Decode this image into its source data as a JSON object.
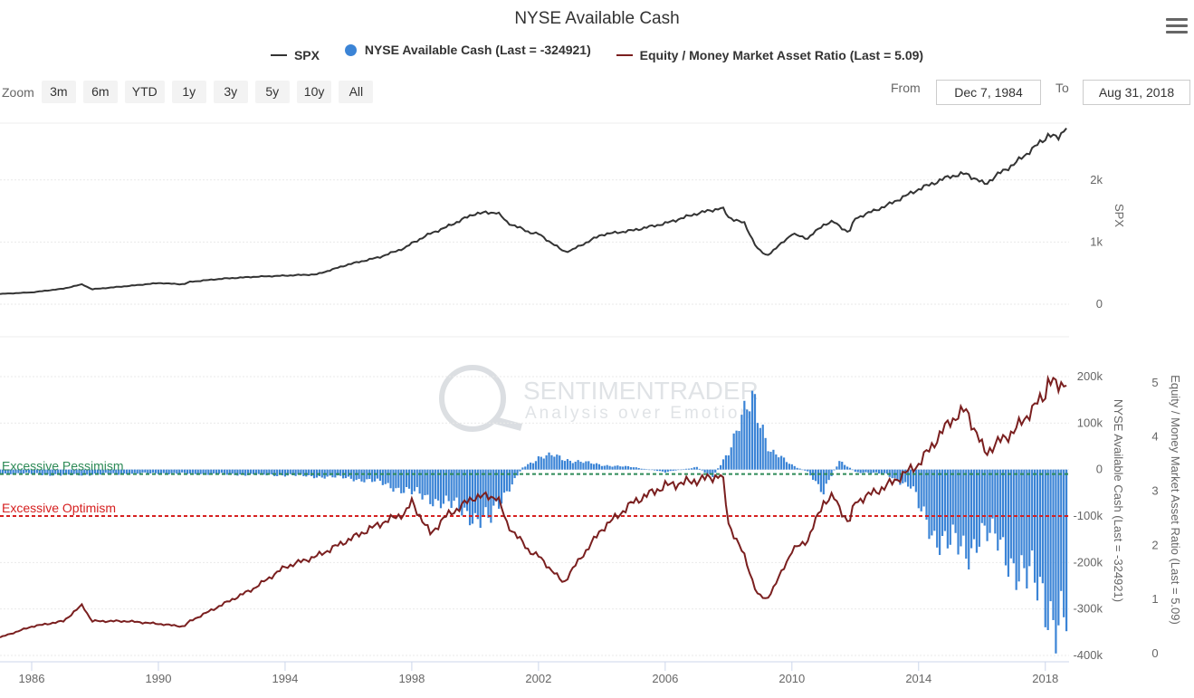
{
  "header": {
    "title": "NYSE Available Cash",
    "legend": [
      {
        "label": "SPX",
        "color": "#333333",
        "symbol": "line"
      },
      {
        "label": "NYSE Available Cash (Last = -324921)",
        "color": "#3b84d6",
        "symbol": "dot"
      },
      {
        "label": "Equity / Money Market Asset Ratio (Last = 5.09)",
        "color": "#7a1f1f",
        "symbol": "line"
      }
    ],
    "menu_icon": "hamburger-menu-icon"
  },
  "zoom": {
    "label": "Zoom",
    "buttons": [
      "3m",
      "6m",
      "YTD",
      "1y",
      "3y",
      "5y",
      "10y",
      "All"
    ]
  },
  "range": {
    "from_label": "From",
    "from_value": "Dec 7, 1984",
    "to_label": "To",
    "to_value": "Aug 31, 2018"
  },
  "watermark": {
    "line1": "SENTIMENTRADER",
    "line2": "Analysis over Emotion"
  },
  "chart_data": [
    {
      "type": "line",
      "name": "SPX",
      "ylabel": "SPX",
      "ylim": [
        0,
        2900
      ],
      "yticks": [
        {
          "v": 0,
          "label": "0"
        },
        {
          "v": 1000,
          "label": "1k"
        },
        {
          "v": 2000,
          "label": "2k"
        }
      ],
      "x": [
        1985,
        1986,
        1987,
        1987.6,
        1987.9,
        1989,
        1990,
        1990.8,
        1991,
        1992,
        1993,
        1994,
        1995,
        1996,
        1997,
        1997.8,
        1998,
        1998.6,
        1999,
        2000,
        2000.7,
        2001,
        2001.7,
        2002,
        2002.8,
        2003,
        2004,
        2005,
        2006,
        2007,
        2007.8,
        2008,
        2008.5,
        2008.9,
        2009.2,
        2009.5,
        2010,
        2010.5,
        2011,
        2011.3,
        2011.8,
        2012,
        2013,
        2014,
        2015,
        2015.5,
        2016.1,
        2016.5,
        2017,
        2018,
        2018.1,
        2018.4,
        2018.7
      ],
      "values": [
        165,
        190,
        250,
        320,
        240,
        290,
        340,
        320,
        360,
        410,
        440,
        460,
        480,
        640,
        760,
        910,
        980,
        1140,
        1220,
        1460,
        1480,
        1320,
        1160,
        1130,
        850,
        860,
        1120,
        1190,
        1300,
        1460,
        1550,
        1400,
        1300,
        900,
        780,
        900,
        1130,
        1060,
        1280,
        1330,
        1150,
        1380,
        1590,
        1850,
        2060,
        2100,
        1930,
        2090,
        2250,
        2670,
        2740,
        2660,
        2900
      ]
    },
    {
      "type": "bar",
      "name": "NYSE Available Cash (Last = -324921)",
      "ylabel": "NYSE Available Cash (Last = -324921)",
      "ylim": [
        -400000,
        200000
      ],
      "yticks": [
        {
          "v": 200000,
          "label": "200k"
        },
        {
          "v": 100000,
          "label": "100k"
        },
        {
          "v": 0,
          "label": "0"
        },
        {
          "v": -100000,
          "label": "-100k"
        },
        {
          "v": -200000,
          "label": "-200k"
        },
        {
          "v": -300000,
          "label": "-300k"
        },
        {
          "v": -400000,
          "label": "-400k"
        }
      ],
      "x": [
        1985,
        1986,
        1987,
        1988,
        1990,
        1992,
        1994,
        1996,
        1997,
        1998,
        1999,
        2000,
        2000.5,
        2001,
        2001.5,
        2002,
        2002.5,
        2003,
        2004,
        2005,
        2006,
        2007,
        2007.5,
        2008,
        2008.4,
        2008.8,
        2009.3,
        2010,
        2010.5,
        2011,
        2011.5,
        2012,
        2013,
        2013.8,
        2014,
        2014.5,
        2015,
        2015.5,
        2016,
        2016.5,
        2017,
        2017.5,
        2018,
        2018.4,
        2018.7
      ],
      "values": [
        -8000,
        -9000,
        -12000,
        -10000,
        -8000,
        -10000,
        -12000,
        -18000,
        -28000,
        -50000,
        -70000,
        -100000,
        -110000,
        -45000,
        5000,
        25000,
        30000,
        20000,
        10000,
        5000,
        -5000,
        5000,
        -15000,
        40000,
        100000,
        160000,
        40000,
        10000,
        -5000,
        -45000,
        20000,
        -5000,
        -10000,
        -40000,
        -80000,
        -140000,
        -160000,
        -180000,
        -130000,
        -160000,
        -200000,
        -240000,
        -280000,
        -320000,
        -325000
      ]
    },
    {
      "type": "line",
      "name": "Equity / Money Market Asset Ratio (Last = 5.09)",
      "ylabel": "Equity / Money Market Asset Ratio (Last = 5.09)",
      "ylim": [
        0,
        5.5
      ],
      "yticks": [
        {
          "v": 0,
          "label": "0"
        },
        {
          "v": 1,
          "label": "1"
        },
        {
          "v": 2,
          "label": "2"
        },
        {
          "v": 3,
          "label": "3"
        },
        {
          "v": 4,
          "label": "4"
        },
        {
          "v": 5,
          "label": "5"
        }
      ],
      "x": [
        1985,
        1986,
        1987,
        1987.6,
        1987.9,
        1989,
        1990,
        1990.8,
        1991,
        1992,
        1993,
        1994,
        1995,
        1996,
        1997,
        1997.8,
        1998,
        1998.6,
        1999,
        2000,
        2000.7,
        2001,
        2001.7,
        2002,
        2002.8,
        2003,
        2004,
        2005,
        2006,
        2007,
        2007.8,
        2008,
        2008.5,
        2008.9,
        2009.2,
        2009.5,
        2010,
        2010.5,
        2011,
        2011.3,
        2011.8,
        2012,
        2013,
        2014,
        2015,
        2015.5,
        2016.1,
        2016.5,
        2017,
        2018,
        2018.1,
        2018.4,
        2018.7
      ],
      "values": [
        0.3,
        0.5,
        0.6,
        0.9,
        0.6,
        0.6,
        0.55,
        0.5,
        0.6,
        0.9,
        1.2,
        1.6,
        1.8,
        2.1,
        2.4,
        2.6,
        2.8,
        2.2,
        2.5,
        2.9,
        2.9,
        2.4,
        1.9,
        1.8,
        1.3,
        1.5,
        2.3,
        2.8,
        3.1,
        3.2,
        3.3,
        2.4,
        1.8,
        1.1,
        1.0,
        1.3,
        1.9,
        2.1,
        2.8,
        2.9,
        2.4,
        2.8,
        3.1,
        3.5,
        4.3,
        4.5,
        3.7,
        3.9,
        4.1,
        4.8,
        5.1,
        4.9,
        5.09
      ]
    }
  ],
  "thresholds": [
    {
      "label": "Excessive Pessimism",
      "value": 0,
      "color": "#2e8b57"
    },
    {
      "label": "Excessive Optimism",
      "value": -100000,
      "color": "#d62020"
    }
  ],
  "xaxis": {
    "ticks": [
      1986,
      1990,
      1994,
      1998,
      2002,
      2006,
      2010,
      2014,
      2018
    ],
    "range": [
      1985,
      2018.75
    ]
  }
}
